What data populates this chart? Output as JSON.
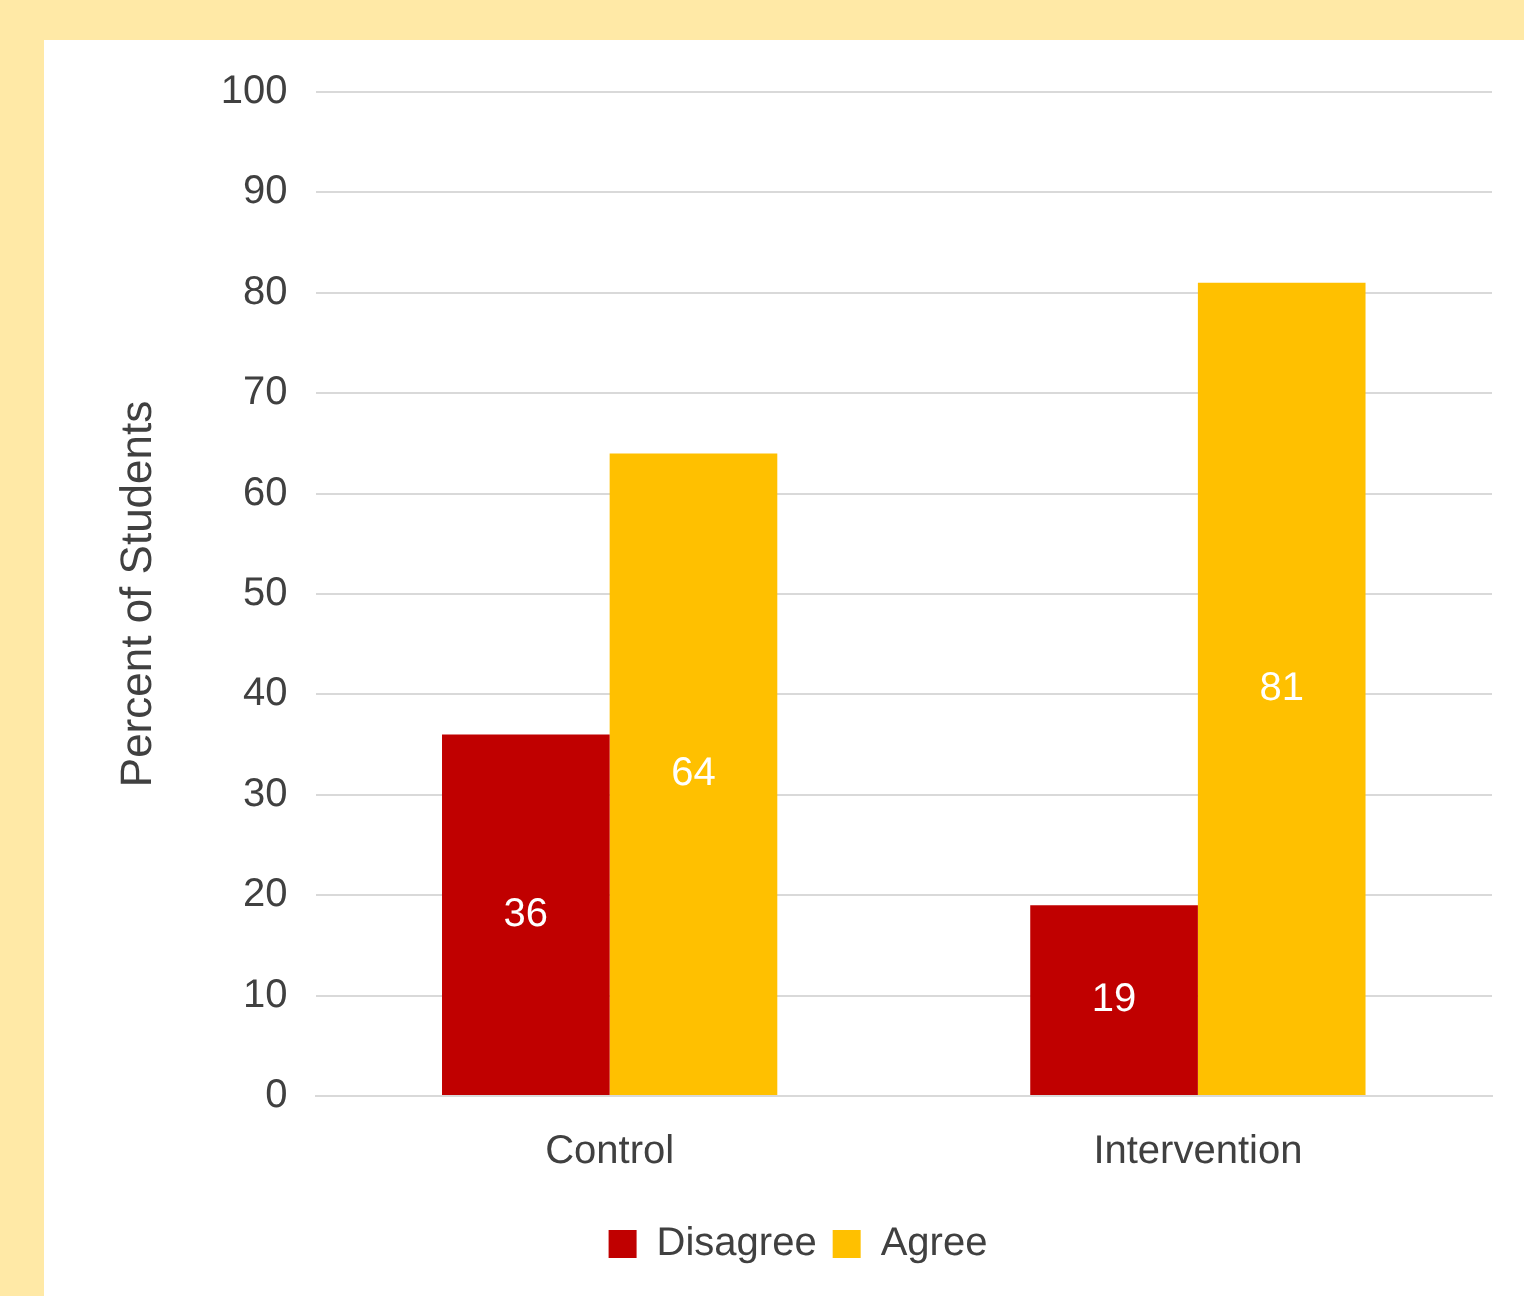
{
  "chart_data": {
    "type": "bar",
    "ylabel": "Percent of Students",
    "categories": [
      "Control",
      "Intervention"
    ],
    "series": [
      {
        "name": "Disagree",
        "color": "#c00000",
        "values": [
          36,
          19
        ]
      },
      {
        "name": "Agree",
        "color": "#ffc000",
        "values": [
          64,
          81
        ]
      }
    ],
    "ylim": [
      0,
      100
    ],
    "yticks": [
      0,
      10,
      20,
      30,
      40,
      50,
      60,
      70,
      80,
      90,
      100
    ],
    "grid": "y",
    "legend": "bottom",
    "data_labels": true
  }
}
